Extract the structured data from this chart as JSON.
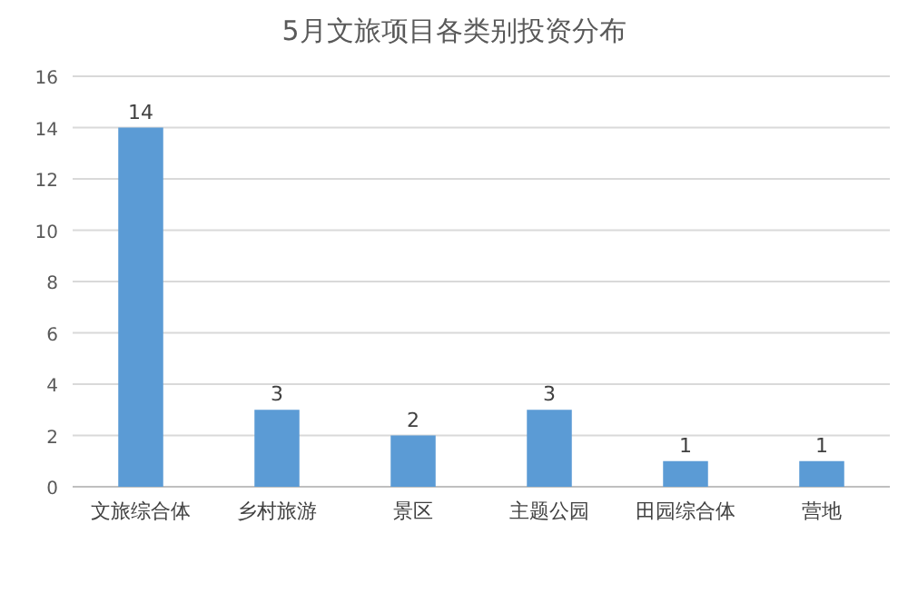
{
  "chart_data": {
    "type": "bar",
    "title": "5月文旅项目各类别投资分布",
    "categories": [
      "文旅综合体",
      "乡村旅游",
      "景区",
      "主题公园",
      "田园综合体",
      "营地"
    ],
    "values": [
      14,
      3,
      2,
      3,
      1,
      1
    ],
    "color": "#5b9bd5",
    "ylim": [
      0,
      16
    ],
    "yticks": [
      0,
      2,
      4,
      6,
      8,
      10,
      12,
      14,
      16
    ],
    "grid": "y",
    "data_labels": true
  }
}
